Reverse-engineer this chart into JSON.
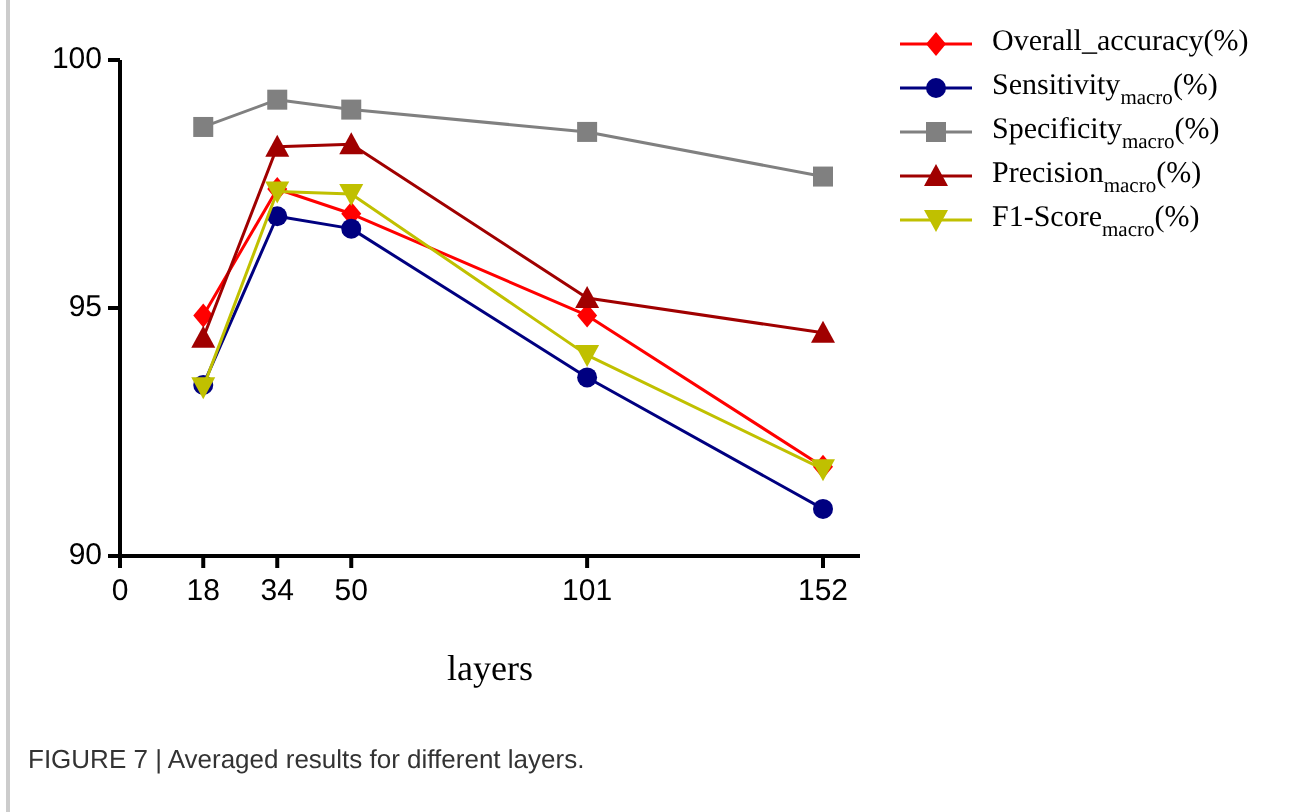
{
  "chart_data": {
    "type": "line",
    "xlabel": "layers",
    "x": [
      18,
      34,
      50,
      101,
      152
    ],
    "xlim": [
      0,
      160
    ],
    "xticks": [
      0,
      18,
      34,
      50,
      101,
      152
    ],
    "ylim": [
      90,
      100
    ],
    "yticks": [
      90,
      95,
      100
    ],
    "grid": false,
    "legend": "top right",
    "line_style": "solid",
    "series": [
      {
        "name": "Overall_accuracy(%)",
        "color": "#ff0000",
        "marker": "diamond",
        "values": [
          94.85,
          97.4,
          96.9,
          94.85,
          91.8
        ]
      },
      {
        "name": "Sensitivity$_{macro}$(%)",
        "color": "#000080",
        "marker": "circle",
        "values": [
          93.45,
          96.85,
          96.6,
          93.6,
          90.95
        ]
      },
      {
        "name": "Specificity$_{macro}$(%)",
        "color": "#808080",
        "marker": "square",
        "values": [
          98.65,
          99.2,
          99.0,
          98.55,
          97.65
        ]
      },
      {
        "name": "Precision$_{macro}$(%)",
        "color": "#a00000",
        "marker": "triangle",
        "values": [
          94.4,
          98.25,
          98.3,
          95.2,
          94.5
        ]
      },
      {
        "name": "F1-Score$_{macro}$(%)",
        "color": "#c0c000",
        "marker": "triangle_down",
        "values": [
          93.4,
          97.35,
          97.3,
          94.05,
          91.75
        ]
      }
    ],
    "annotations": [
      "FIGURE 7 | Averaged results for different layers."
    ]
  }
}
